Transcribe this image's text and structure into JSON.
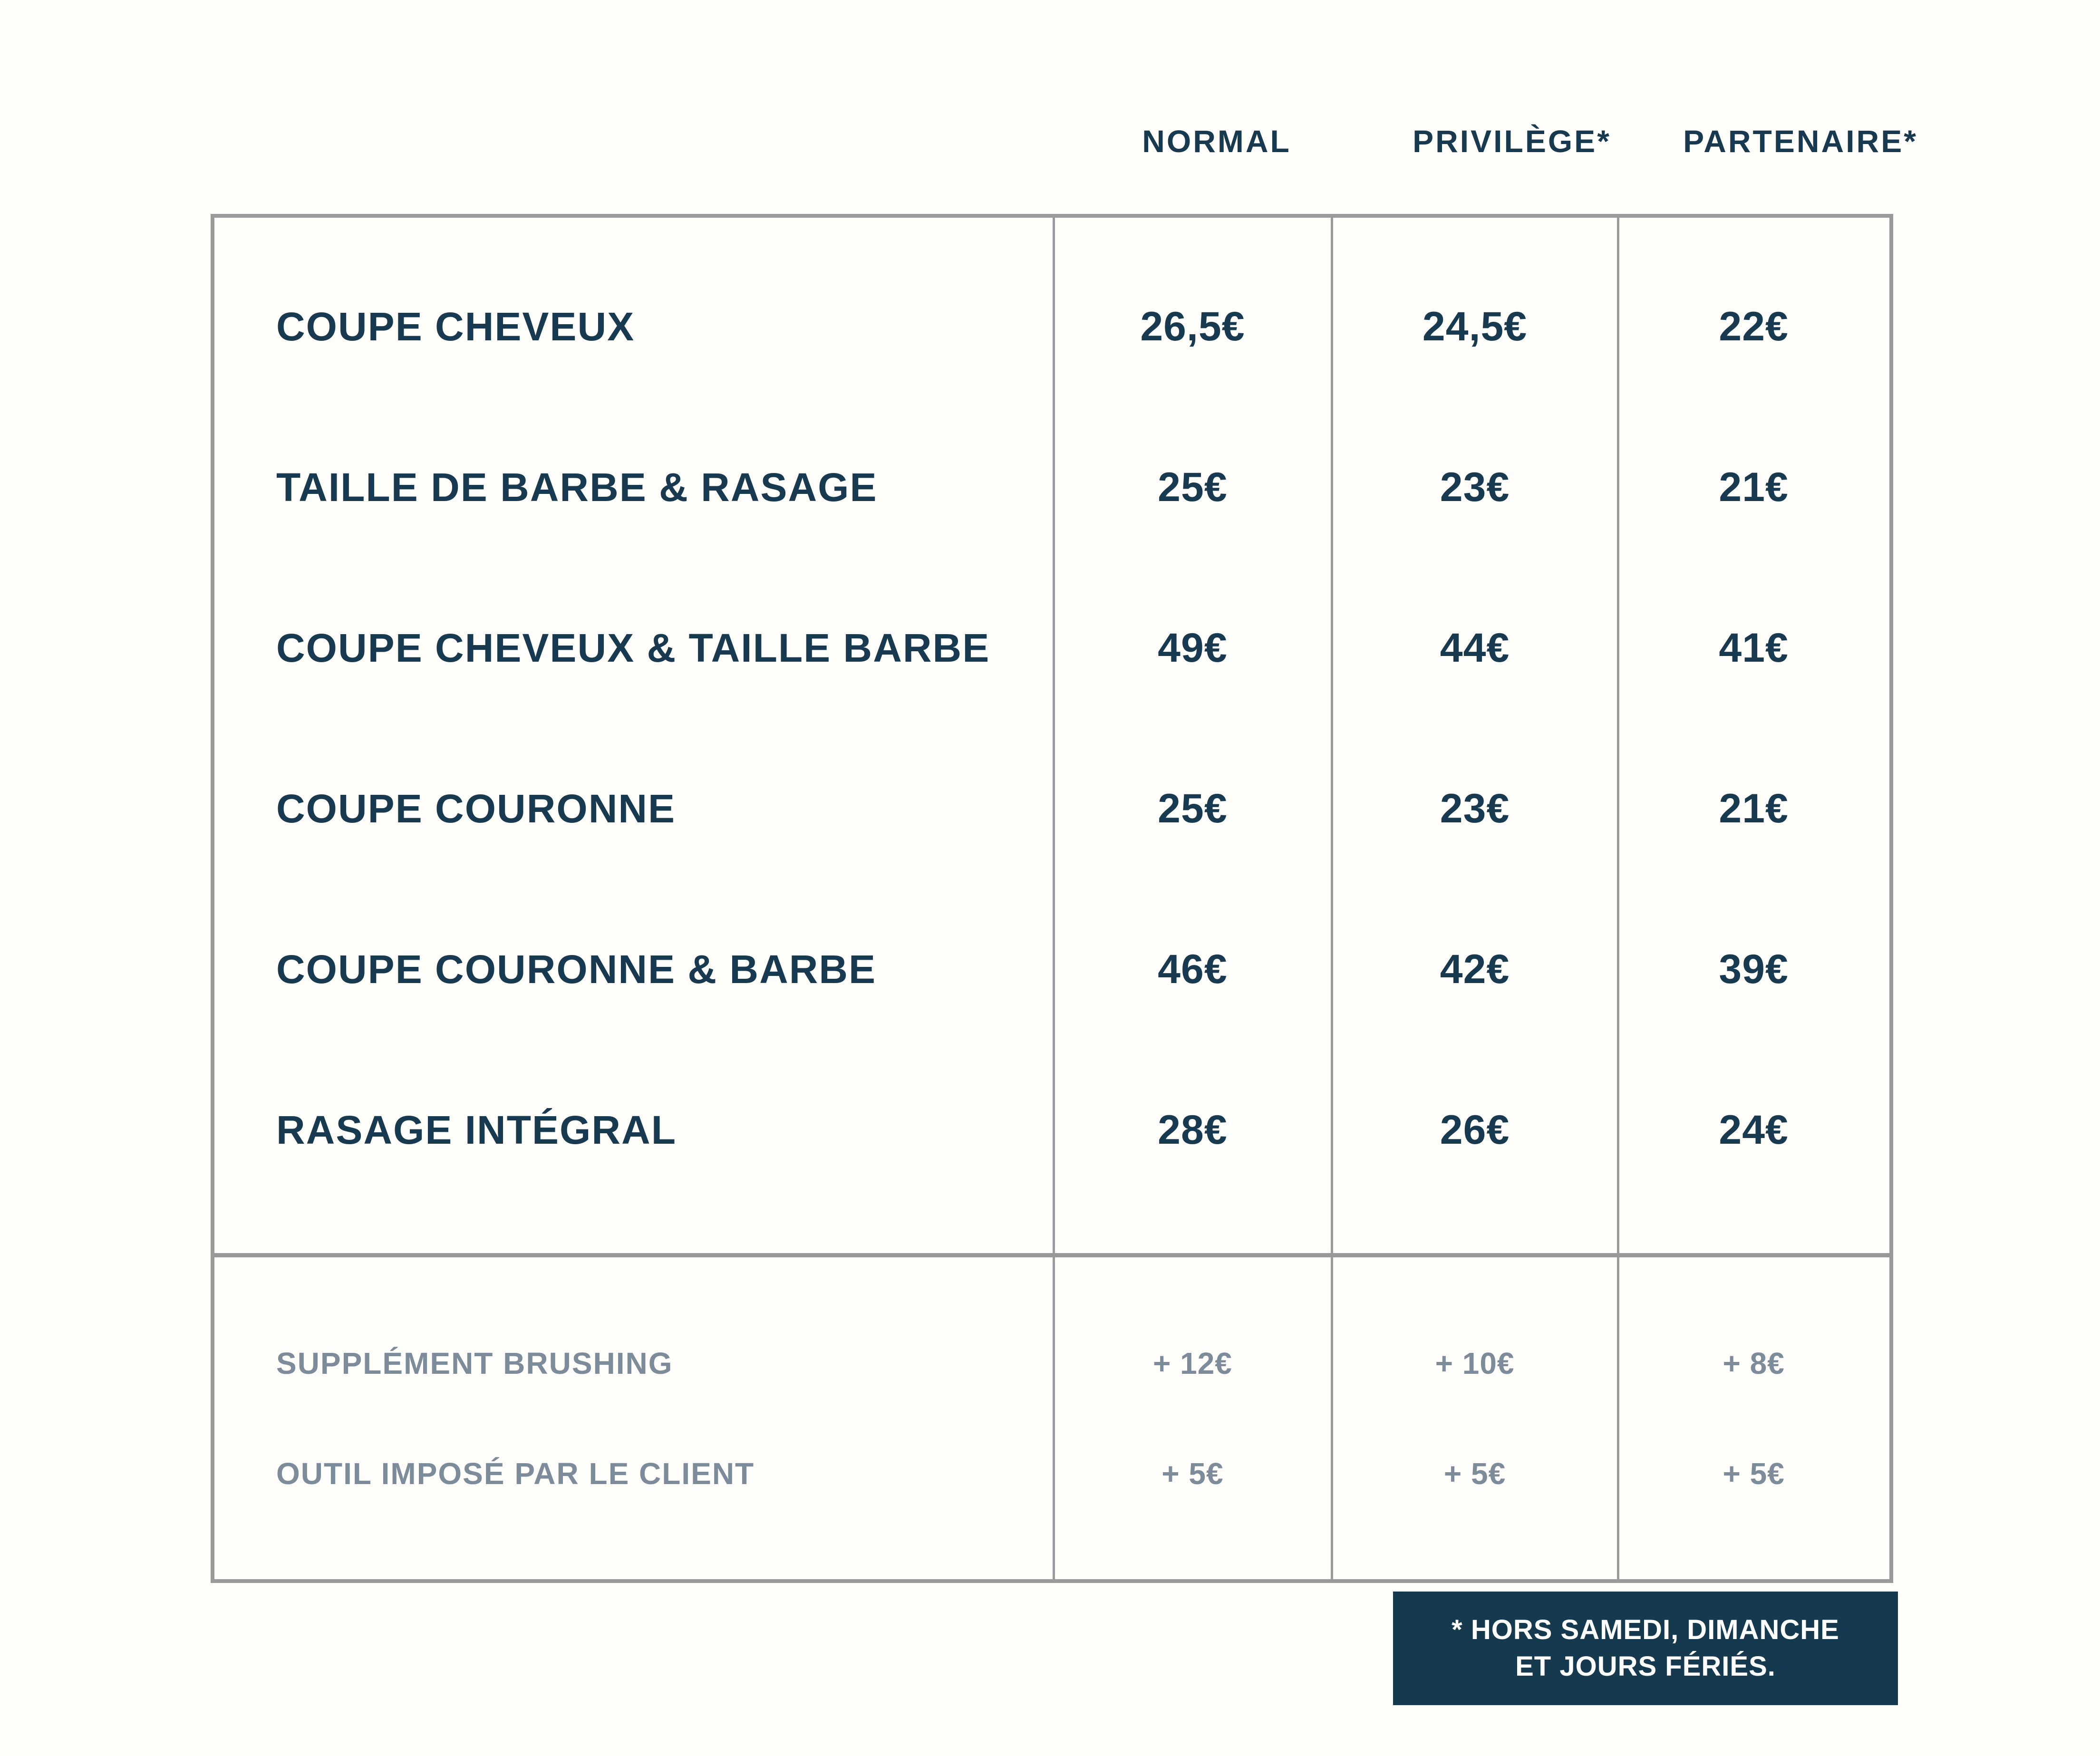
{
  "colors": {
    "navy_text": "#173a50",
    "gray_text": "#7d8c9b",
    "border_gray": "#9a9a9a",
    "footnote_bg": "#15394e",
    "footnote_text": "#ffffff"
  },
  "header": {
    "columns": [
      "NORMAL",
      "PRIVILÈGE*",
      "PARTENAIRE*"
    ]
  },
  "services": [
    {
      "label": "COUPE CHEVEUX",
      "normal": "26,5€",
      "privilege": "24,5€",
      "partenaire": "22€"
    },
    {
      "label": "TAILLE DE BARBE & RASAGE",
      "normal": "25€",
      "privilege": "23€",
      "partenaire": "21€"
    },
    {
      "label": "COUPE CHEVEUX & TAILLE BARBE",
      "normal": "49€",
      "privilege": "44€",
      "partenaire": "41€"
    },
    {
      "label": "COUPE COURONNE",
      "normal": "25€",
      "privilege": "23€",
      "partenaire": "21€"
    },
    {
      "label": "COUPE COURONNE & BARBE",
      "normal": "46€",
      "privilege": "42€",
      "partenaire": "39€"
    },
    {
      "label": "RASAGE INTÉGRAL",
      "normal": "28€",
      "privilege": "26€",
      "partenaire": "24€"
    }
  ],
  "supplements": [
    {
      "label": "SUPPLÉMENT BRUSHING",
      "normal": "+ 12€",
      "privilege": "+ 10€",
      "partenaire": "+ 8€"
    },
    {
      "label": "OUTIL IMPOSÉ PAR LE CLIENT",
      "normal": "+ 5€",
      "privilege": "+ 5€",
      "partenaire": "+ 5€"
    }
  ],
  "footnote": {
    "line1": "* HORS SAMEDI, DIMANCHE",
    "line2": "ET JOURS FÉRIÉS."
  }
}
